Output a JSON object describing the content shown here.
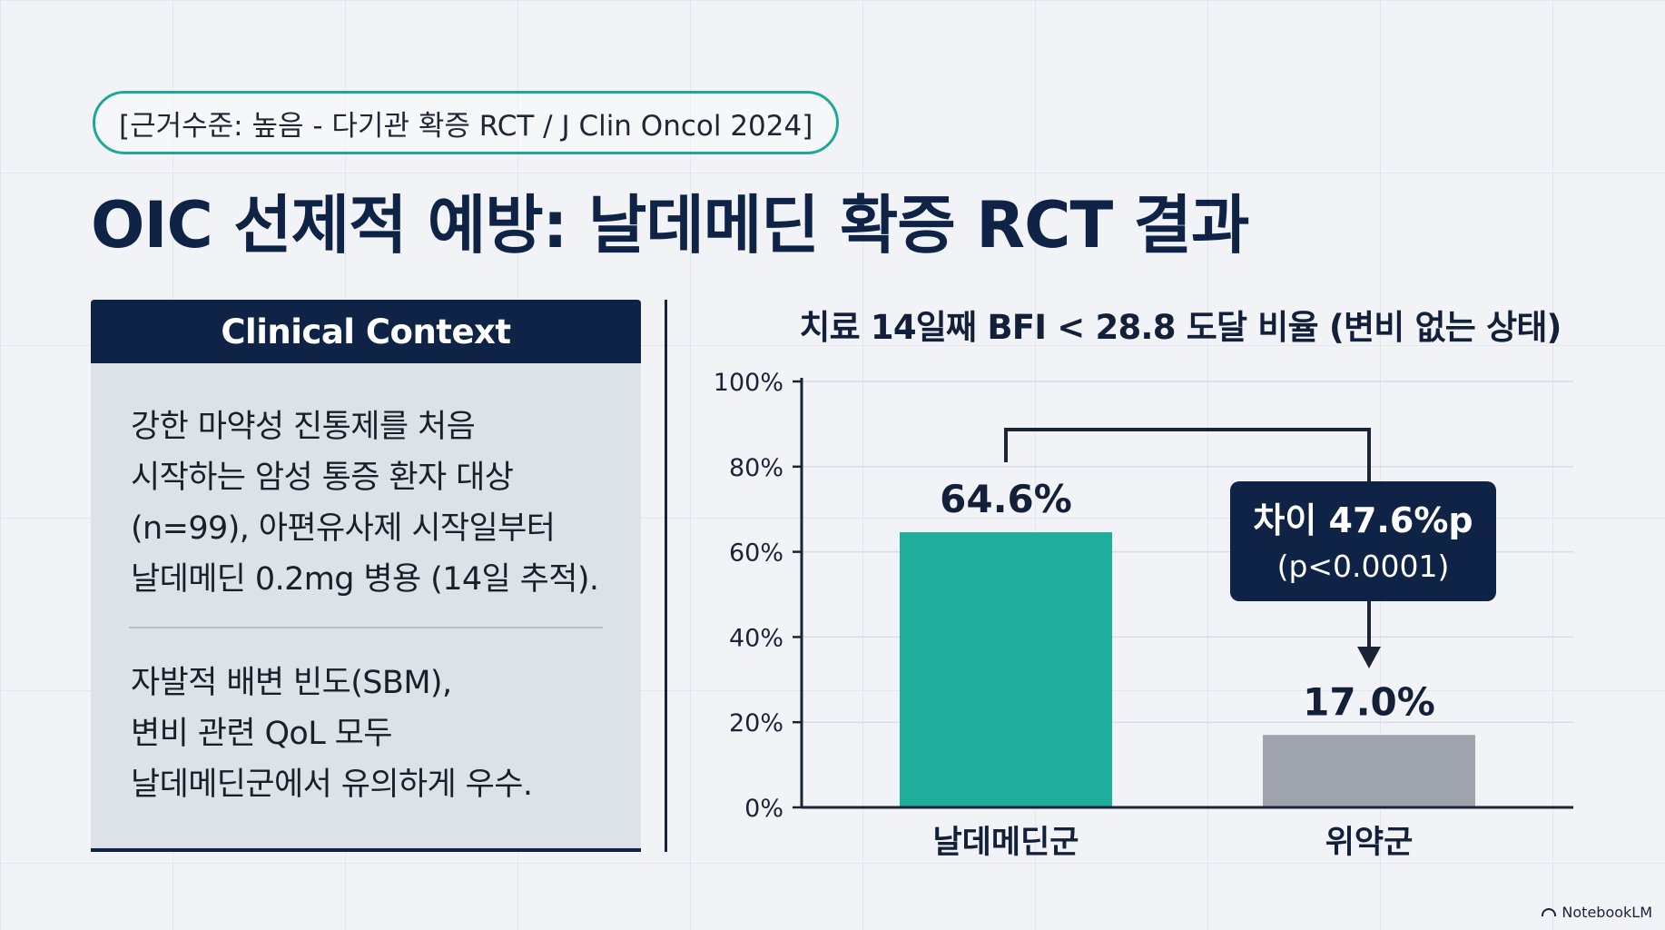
{
  "badge": "[근거수준: 높음 - 다기관 확증 RCT / J Clin Oncol 2024]",
  "title": "OIC 선제적 예방: 날데메딘 확증 RCT 결과",
  "context": {
    "header": "Clinical Context",
    "paragraph1": "강한 마약성 진통제를 처음\n시작하는 암성 통증 환자 대상\n(n=99), 아편유사제 시작일부터\n날데메딘 0.2mg 병용 (14일 추적).",
    "paragraph2": "자발적 배변 빈도(SBM),\n변비 관련 QoL 모두\n날데메딘군에서 유의하게 우수."
  },
  "chart_data": {
    "type": "bar",
    "title": "치료 14일째 BFI < 28.8 도달 비율 (변비 없는 상태)",
    "categories": [
      "날데메딘군",
      "위약군"
    ],
    "values": [
      64.6,
      17.0
    ],
    "value_labels": [
      "64.6%",
      "17.0%"
    ],
    "colors": [
      "#1fae9b",
      "#9ea3ac"
    ],
    "ylim": [
      0,
      100
    ],
    "yticks": [
      0,
      20,
      40,
      60,
      80,
      100
    ],
    "ytick_labels": [
      "0%",
      "20%",
      "40%",
      "60%",
      "80%",
      "100%"
    ],
    "grid": true,
    "annotation": {
      "line1": "차이 47.6%p",
      "line2": "(p<0.0001)"
    }
  },
  "watermark": "NotebookLM"
}
